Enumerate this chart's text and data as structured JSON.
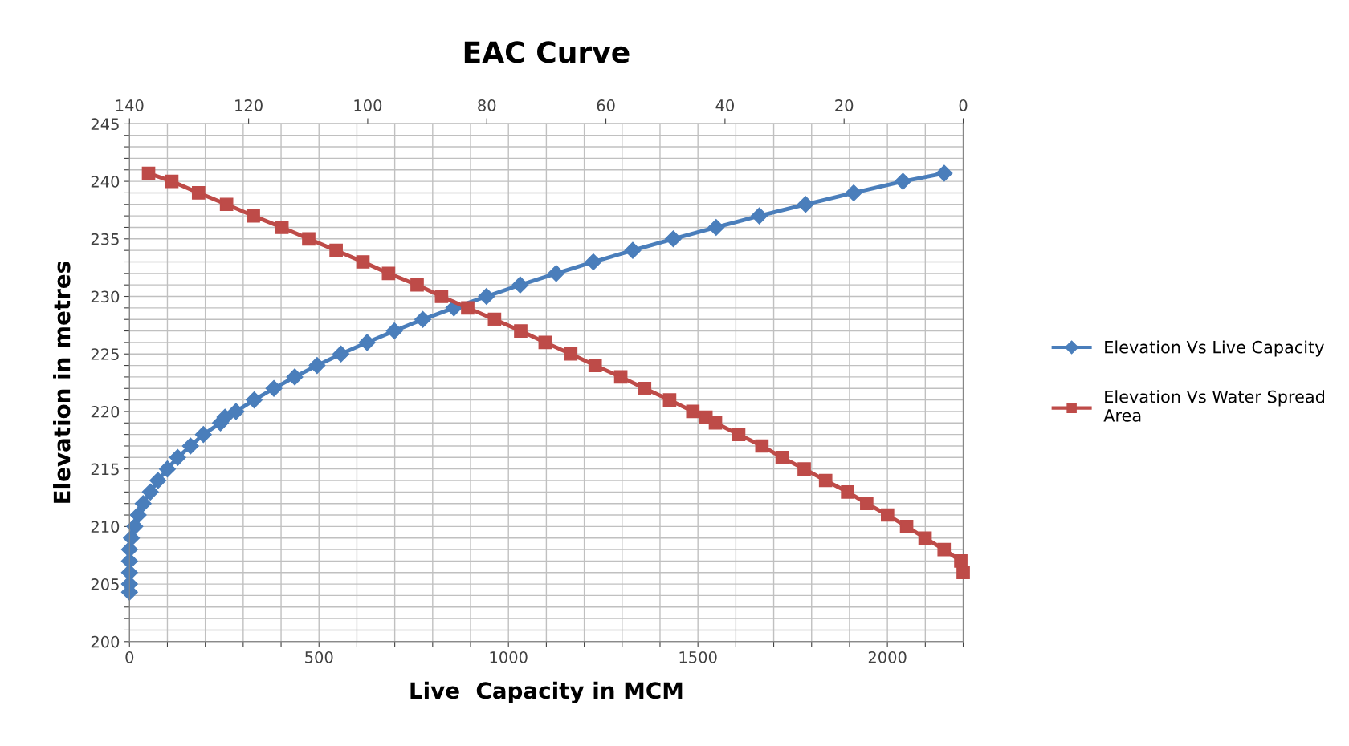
{
  "chart_data": {
    "type": "line",
    "title": "EAC Curve",
    "xlabel": "Live  Capacity in MCM",
    "ylabel": "Elevation in metres",
    "xlim": [
      0,
      2200
    ],
    "xticks": [
      0,
      {
        "value": 100,
        "label": null
      },
      {
        "value": 200,
        "label": null
      },
      {
        "value": 300,
        "label": null
      },
      {
        "value": 400,
        "label": null
      },
      500,
      {
        "value": 600,
        "label": null
      },
      {
        "value": 700,
        "label": null
      },
      {
        "value": 800,
        "label": null
      },
      {
        "value": 900,
        "label": null
      },
      1000,
      {
        "value": 1100,
        "label": null
      },
      {
        "value": 1200,
        "label": null
      },
      {
        "value": 1300,
        "label": null
      },
      {
        "value": 1400,
        "label": null
      },
      1500,
      {
        "value": 1600,
        "label": null
      },
      {
        "value": 1700,
        "label": null
      },
      {
        "value": 1800,
        "label": null
      },
      {
        "value": 1900,
        "label": null
      },
      2000,
      {
        "value": 2100,
        "label": null
      },
      {
        "value": 2200,
        "label": null
      }
    ],
    "x2lim": [
      140,
      0
    ],
    "x2ticks": [
      140,
      120,
      100,
      80,
      60,
      40,
      20,
      0
    ],
    "ylim": [
      200,
      245
    ],
    "yticks": [
      200,
      {
        "value": 201,
        "label": null
      },
      {
        "value": 202,
        "label": null
      },
      {
        "value": 203,
        "label": null
      },
      {
        "value": 204,
        "label": null
      },
      205,
      {
        "value": 206,
        "label": null
      },
      {
        "value": 207,
        "label": null
      },
      {
        "value": 208,
        "label": null
      },
      {
        "value": 209,
        "label": null
      },
      210,
      {
        "value": 211,
        "label": null
      },
      {
        "value": 212,
        "label": null
      },
      {
        "value": 213,
        "label": null
      },
      {
        "value": 214,
        "label": null
      },
      215,
      {
        "value": 216,
        "label": null
      },
      {
        "value": 217,
        "label": null
      },
      {
        "value": 218,
        "label": null
      },
      {
        "value": 219,
        "label": null
      },
      220,
      {
        "value": 221,
        "label": null
      },
      {
        "value": 222,
        "label": null
      },
      {
        "value": 223,
        "label": null
      },
      {
        "value": 224,
        "label": null
      },
      225,
      {
        "value": 226,
        "label": null
      },
      {
        "value": 227,
        "label": null
      },
      {
        "value": 228,
        "label": null
      },
      {
        "value": 229,
        "label": null
      },
      230,
      {
        "value": 231,
        "label": null
      },
      {
        "value": 232,
        "label": null
      },
      {
        "value": 233,
        "label": null
      },
      {
        "value": 234,
        "label": null
      },
      235,
      {
        "value": 236,
        "label": null
      },
      {
        "value": 237,
        "label": null
      },
      {
        "value": 238,
        "label": null
      },
      {
        "value": 239,
        "label": null
      },
      240,
      {
        "value": 241,
        "label": null
      },
      {
        "value": 242,
        "label": null
      },
      {
        "value": 243,
        "label": null
      },
      {
        "value": 244,
        "label": null
      },
      245
    ],
    "grid": true,
    "legend": "right",
    "series": [
      {
        "name": "Elevation Vs Live Capacity",
        "color": "#4a7ebb",
        "marker": "diamond",
        "x": [
          0,
          0,
          0,
          0,
          0,
          5,
          14,
          23,
          36,
          55,
          75,
          100,
          127,
          161,
          195,
          240,
          252,
          281,
          329,
          381,
          436,
          495,
          558,
          627,
          699,
          774,
          856,
          942,
          1031,
          1126,
          1224,
          1328,
          1435,
          1548,
          1662,
          1784,
          1911,
          2041,
          2150
        ],
        "values": [
          204.3,
          205,
          206,
          207,
          208,
          209,
          210,
          211,
          212,
          213,
          214,
          215,
          216,
          217,
          218,
          219,
          219.5,
          220,
          221,
          222,
          223,
          224,
          225,
          226,
          227,
          228,
          229,
          230,
          231,
          232,
          233,
          234,
          235,
          236,
          237,
          238,
          239,
          240,
          240.7
        ]
      },
      {
        "name": "Elevation Vs Water Spread Area",
        "color": "#be4b48",
        "marker": "square",
        "axis": "x2",
        "x": [
          136.8,
          132.9,
          128.4,
          123.7,
          119.2,
          114.4,
          109.9,
          105.3,
          100.8,
          96.5,
          91.7,
          87.6,
          83.2,
          78.7,
          74.3,
          70.2,
          65.9,
          61.8,
          57.5,
          53.5,
          49.3,
          45.4,
          43.2,
          41.6,
          37.7,
          33.8,
          30.4,
          26.7,
          23.1,
          19.4,
          16.2,
          12.7,
          9.5,
          6.4,
          3.2,
          0.4,
          0
        ],
        "values": [
          240.7,
          240,
          239,
          238,
          237,
          236,
          235,
          234,
          233,
          232,
          231,
          230,
          229,
          228,
          227,
          226,
          225,
          224,
          223,
          222,
          221,
          220,
          219.5,
          219,
          218,
          217,
          216,
          215,
          214,
          213,
          212,
          211,
          210,
          209,
          208,
          207,
          206
        ]
      }
    ]
  }
}
